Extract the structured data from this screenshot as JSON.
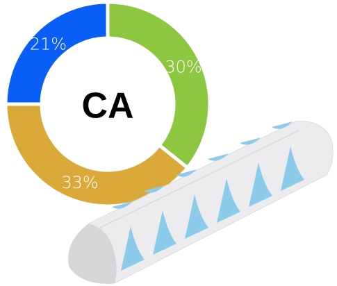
{
  "chart_data": {
    "type": "donut",
    "title": "CA",
    "values": [
      30,
      33,
      21
    ],
    "value_labels": [
      "30%",
      "33%",
      "21%"
    ],
    "colors": [
      "#8dc63f",
      "#dba93a",
      "#0a5ef8"
    ]
  }
}
